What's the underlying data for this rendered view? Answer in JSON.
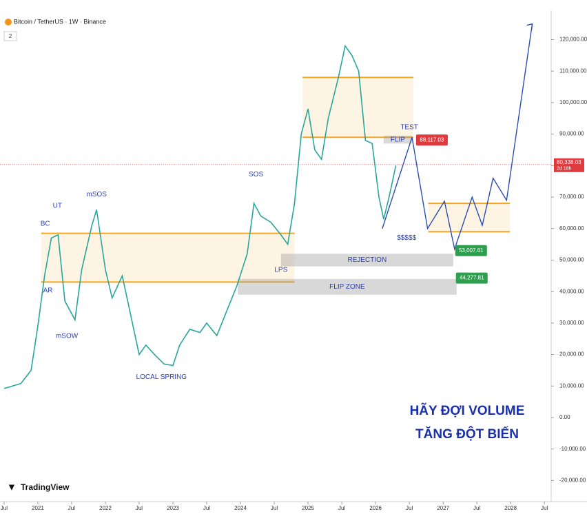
{
  "chart_data": {
    "type": "line",
    "title": "Bitcoin / TetherUS · 1W · Binance",
    "interval_count": "2",
    "brand": "TradingView",
    "x": [
      2020.5,
      2020.75,
      2020.9,
      2021.0,
      2021.1,
      2021.2,
      2021.3,
      2021.4,
      2021.55,
      2021.65,
      2021.8,
      2021.87,
      2022.0,
      2022.1,
      2022.25,
      2022.4,
      2022.5,
      2022.6,
      2022.75,
      2022.87,
      2023.0,
      2023.1,
      2023.25,
      2023.4,
      2023.5,
      2023.65,
      2023.8,
      2023.95,
      2024.1,
      2024.2,
      2024.3,
      2024.45,
      2024.6,
      2024.7,
      2024.8,
      2024.9,
      2025.0,
      2025.1,
      2025.2,
      2025.3,
      2025.45,
      2025.55,
      2025.65,
      2025.75,
      2025.85,
      2025.95,
      2026.05,
      2026.12,
      2026.2,
      2026.3
    ],
    "values": [
      9200,
      10800,
      15000,
      29000,
      45000,
      57000,
      58000,
      37000,
      31000,
      47000,
      61000,
      66000,
      47000,
      38000,
      45000,
      30000,
      20000,
      23000,
      19500,
      17000,
      16500,
      23000,
      28000,
      27000,
      30000,
      26000,
      34000,
      42000,
      52000,
      68000,
      64000,
      62000,
      58000,
      55000,
      68000,
      90000,
      98000,
      85000,
      82000,
      95000,
      108000,
      118000,
      115000,
      110000,
      88000,
      87000,
      70000,
      63000,
      70000,
      80000
    ],
    "color": "#26a69a",
    "projection": {
      "x": [
        2026.1,
        2026.54,
        2026.77,
        2027.02,
        2027.17,
        2027.43,
        2027.58,
        2027.74,
        2027.94,
        2028.32
      ],
      "values": [
        60000,
        89000,
        60000,
        68700,
        53500,
        70000,
        61000,
        76000,
        69000,
        125000
      ],
      "color": "#2a4db5"
    },
    "current_price": {
      "value": 80338.03,
      "label": "80,338.03"
    },
    "countdown": "2d 18h",
    "price_labels": [
      {
        "value": 88117.03,
        "label": "88,117.03",
        "x": 2026.6,
        "color": "#e0393e"
      },
      {
        "value": 53007.61,
        "label": "53,007.61",
        "x": 2027.18,
        "color": "#2e9e4f"
      },
      {
        "value": 44277.81,
        "label": "44,277.81",
        "x": 2027.19,
        "color": "#2e9e4f"
      }
    ],
    "zones": [
      {
        "xlim": [
          2021.05,
          2024.8
        ],
        "ylim": [
          43000,
          58500
        ],
        "color": "#f5a623"
      },
      {
        "xlim": [
          2024.92,
          2026.56
        ],
        "ylim": [
          89000,
          108000
        ],
        "color": "#f5a623"
      },
      {
        "xlim": [
          2026.78,
          2027.99
        ],
        "ylim": [
          59000,
          68000
        ],
        "color": "#f5a623"
      }
    ],
    "gray_zones": [
      {
        "label": "REJECTION",
        "xlim": [
          2024.6,
          2027.15
        ],
        "ylim": [
          48000,
          52000
        ]
      },
      {
        "label": "FLIP ZONE",
        "xlim": [
          2023.96,
          2027.2
        ],
        "ylim": [
          39000,
          44000
        ]
      },
      {
        "label": "FLIP",
        "xlim": [
          2026.12,
          2026.54
        ],
        "ylim": [
          87000,
          89500
        ]
      }
    ],
    "annotations": [
      {
        "text": "BC",
        "x": 2021.11,
        "y": 61500
      },
      {
        "text": "UT",
        "x": 2021.29,
        "y": 67200
      },
      {
        "text": "AR",
        "x": 2021.15,
        "y": 40300
      },
      {
        "text": "mSOS",
        "x": 2021.87,
        "y": 70800
      },
      {
        "text": "mSOW",
        "x": 2021.43,
        "y": 25800
      },
      {
        "text": "LOCAL SPRING",
        "x": 2022.83,
        "y": 12800
      },
      {
        "text": "SOS",
        "x": 2024.23,
        "y": 77100
      },
      {
        "text": "LPS",
        "x": 2024.6,
        "y": 46800
      },
      {
        "text": "TEST",
        "x": 2026.5,
        "y": 92100
      },
      {
        "text": "$$$$$",
        "x": 2026.46,
        "y": 57000
      }
    ],
    "overlay_text": [
      "HÃY ĐỢI VOLUME",
      "TĂNG ĐỘT BIẾN"
    ],
    "xlim": [
      2020.44,
      2028.6
    ],
    "ylim": [
      -26700,
      129300
    ],
    "xticks": [
      {
        "value": 2020.5,
        "label": "Jul"
      },
      2021,
      {
        "value": 2021.5,
        "label": "Jul"
      },
      2022,
      {
        "value": 2022.5,
        "label": "Jul"
      },
      2023,
      {
        "value": 2023.5,
        "label": "Jul"
      },
      2024,
      {
        "value": 2024.5,
        "label": "Jul"
      },
      2025,
      {
        "value": 2025.5,
        "label": "Jul"
      },
      2026,
      {
        "value": 2026.5,
        "label": "Jul"
      },
      2027,
      {
        "value": 2027.5,
        "label": "Jul"
      },
      2028,
      {
        "value": 2028.5,
        "label": "Jul"
      }
    ],
    "yticks": [
      {
        "value": 120000,
        "label": "120,000.00"
      },
      {
        "value": 110000,
        "label": "110,000.00"
      },
      {
        "value": 100000,
        "label": "100,000.00"
      },
      {
        "value": 90000,
        "label": "90,000.00"
      },
      {
        "value": 80000,
        "label": "80,000.00"
      },
      {
        "value": 70000,
        "label": "70,000.00"
      },
      {
        "value": 60000,
        "label": "60,000.00"
      },
      {
        "value": 50000,
        "label": "50,000.00"
      },
      {
        "value": 40000,
        "label": "40,000.00"
      },
      {
        "value": 30000,
        "label": "30,000.00"
      },
      {
        "value": 20000,
        "label": "20,000.00"
      },
      {
        "value": 10000,
        "label": "10,000.00"
      },
      {
        "value": 0,
        "label": "0.00"
      },
      {
        "value": -10000,
        "label": "-10,000.00"
      },
      {
        "value": -20000,
        "label": "-20,000.00"
      }
    ]
  }
}
